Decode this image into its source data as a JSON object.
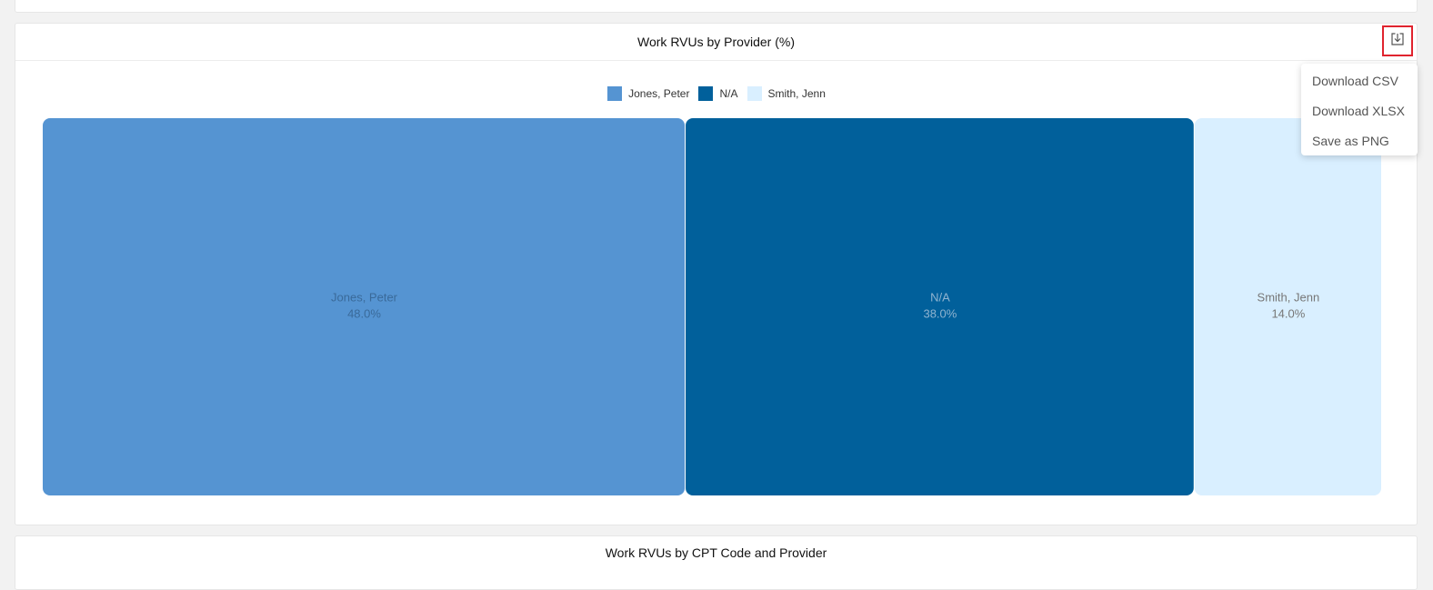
{
  "panels": {
    "provider": {
      "title": "Work RVUs by Provider (%)",
      "download_icon": "download-tray-icon"
    },
    "cpt": {
      "title": "Work RVUs by CPT Code and Provider"
    }
  },
  "download_menu": {
    "items": [
      "Download CSV",
      "Download XLSX",
      "Save as PNG"
    ]
  },
  "chart_data": {
    "type": "treemap",
    "title": "Work RVUs by Provider (%)",
    "legend_position": "top-center",
    "series": [
      {
        "name": "Jones, Peter",
        "value": 48.0,
        "label": "48.0%",
        "color": "#5594d2",
        "text_color": "#3a6a9a"
      },
      {
        "name": "N/A",
        "value": 38.0,
        "label": "38.0%",
        "color": "#01609b",
        "text_color": "#8fb3cf"
      },
      {
        "name": "Smith, Jenn",
        "value": 14.0,
        "label": "14.0%",
        "color": "#d9efff",
        "text_color": "#777777"
      }
    ]
  }
}
